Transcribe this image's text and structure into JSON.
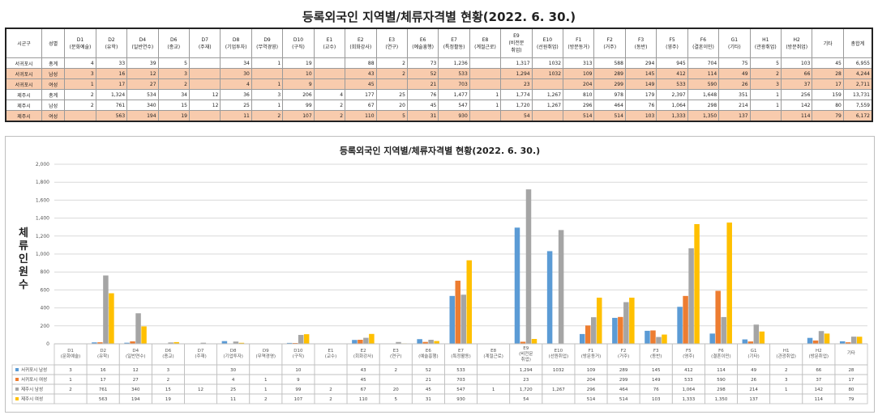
{
  "title": "등록외국인 지역별/체류자격별 현황(2022. 6. 30.)",
  "table": {
    "region_header": "시군구",
    "gender_header": "성별",
    "headers": [
      "D1\n(문화예술)",
      "D2\n(유학)",
      "D4\n(일반연수)",
      "D6\n(종교)",
      "D7\n(주재)",
      "D8\n(기업투자)",
      "D9\n(무역경영)",
      "D10\n(구직)",
      "E1\n(교수)",
      "E2\n(회화강사)",
      "E3\n(연구)",
      "E6\n(예술흥행)",
      "E7\n(특정활동)",
      "E8\n(계절근로)",
      "E9\n(비전문\n취업)",
      "E10\n(선원취업)",
      "F1\n(방문동거)",
      "F2\n(거주)",
      "F3\n(동반)",
      "F5\n(영주)",
      "F6\n(결혼이민)",
      "G1\n(기타)",
      "H1\n(관광취업)",
      "H2\n(방문취업)",
      "기타",
      "총합계"
    ],
    "rows": [
      {
        "region": "서귀포시",
        "gender": "총계",
        "values": [
          "4",
          "33",
          "39",
          "5",
          "",
          "34",
          "1",
          "19",
          "",
          "88",
          "2",
          "73",
          "1,236",
          "",
          "1,317",
          "1032",
          "313",
          "588",
          "294",
          "945",
          "704",
          "75",
          "5",
          "103",
          "45",
          "6,955"
        ]
      },
      {
        "region": "서귀포시",
        "gender": "남성",
        "values": [
          "3",
          "16",
          "12",
          "3",
          "",
          "30",
          "",
          "10",
          "",
          "43",
          "2",
          "52",
          "533",
          "",
          "1,294",
          "1032",
          "109",
          "289",
          "145",
          "412",
          "114",
          "49",
          "2",
          "66",
          "28",
          "4,244"
        ]
      },
      {
        "region": "서귀포시",
        "gender": "여성",
        "values": [
          "1",
          "17",
          "27",
          "2",
          "",
          "4",
          "1",
          "9",
          "",
          "45",
          "",
          "21",
          "703",
          "",
          "23",
          "",
          "204",
          "299",
          "149",
          "533",
          "590",
          "26",
          "3",
          "37",
          "17",
          "2,711"
        ]
      },
      {
        "region": "제주시",
        "gender": "총계",
        "values": [
          "2",
          "1,324",
          "534",
          "34",
          "12",
          "36",
          "3",
          "206",
          "4",
          "177",
          "25",
          "76",
          "1,477",
          "1",
          "1,774",
          "1,267",
          "810",
          "978",
          "179",
          "2,397",
          "1,648",
          "351",
          "1",
          "256",
          "159",
          "13,731"
        ]
      },
      {
        "region": "제주시",
        "gender": "남성",
        "values": [
          "2",
          "761",
          "340",
          "15",
          "12",
          "25",
          "1",
          "99",
          "2",
          "67",
          "20",
          "45",
          "547",
          "1",
          "1,720",
          "1,267",
          "296",
          "464",
          "76",
          "1,064",
          "298",
          "214",
          "1",
          "142",
          "80",
          "7,559"
        ]
      },
      {
        "region": "제주시",
        "gender": "여성",
        "values": [
          "",
          "563",
          "194",
          "19",
          "",
          "11",
          "2",
          "107",
          "2",
          "110",
          "5",
          "31",
          "930",
          "",
          "54",
          "",
          "514",
          "514",
          "103",
          "1,333",
          "1,350",
          "137",
          "",
          "114",
          "79",
          "6,172"
        ]
      }
    ]
  },
  "chart_data": {
    "type": "bar",
    "title": "등록외국인 지역별/체류자격별 현황(2022. 6. 30.)",
    "ylabel": "체류인원수",
    "xlabel": "",
    "ylim": [
      0,
      2000
    ],
    "yticks": [
      "0",
      "200",
      "400",
      "600",
      "800",
      "1,000",
      "1,200",
      "1,400",
      "1,600",
      "1,800",
      "2,000"
    ],
    "grid": true,
    "legend": "table-bottom",
    "categories": [
      "D1\n(문화예술)",
      "D2\n(유학)",
      "D4\n(일반연수)",
      "D6\n(종교)",
      "D7\n(주재)",
      "D8\n(기업투자)",
      "D9\n(무역경영)",
      "D10\n(구직)",
      "E1\n(교수)",
      "E2\n(회화강사)",
      "E3\n(연구)",
      "E6\n(예술흥행)",
      "E7\n(특정활동)",
      "E8\n(계절근로)",
      "E9\n(비전문\n취업)",
      "E10\n(선원취업)",
      "F1\n(방문동거)",
      "F2\n(거주)",
      "F3\n(동반)",
      "F5\n(영주)",
      "F6\n(결혼이민)",
      "G1\n(기타)",
      "H1\n(관광취업)",
      "H2\n(방문취업)",
      "기타"
    ],
    "series": [
      {
        "name": "서귀포시 남성",
        "color": "#5b9bd5",
        "values": [
          3,
          16,
          12,
          3,
          null,
          30,
          null,
          10,
          null,
          43,
          2,
          52,
          533,
          null,
          1294,
          1032,
          109,
          289,
          145,
          412,
          114,
          49,
          2,
          66,
          28
        ],
        "labels": [
          "3",
          "16",
          "12",
          "3",
          "",
          "30",
          "",
          "10",
          "",
          "43",
          "2",
          "52",
          "533",
          "",
          "1,294",
          "1032",
          "109",
          "289",
          "145",
          "412",
          "114",
          "49",
          "2",
          "66",
          "28"
        ]
      },
      {
        "name": "서귀포시 여성",
        "color": "#ed7d31",
        "values": [
          1,
          17,
          27,
          2,
          null,
          4,
          1,
          9,
          null,
          45,
          null,
          21,
          703,
          null,
          23,
          null,
          204,
          299,
          149,
          533,
          590,
          26,
          3,
          37,
          17
        ],
        "labels": [
          "1",
          "17",
          "27",
          "2",
          "",
          "4",
          "1",
          "9",
          "",
          "45",
          "",
          "21",
          "703",
          "",
          "23",
          "",
          "204",
          "299",
          "149",
          "533",
          "590",
          "26",
          "3",
          "37",
          "17"
        ]
      },
      {
        "name": "제주시 남성",
        "color": "#a5a5a5",
        "values": [
          2,
          761,
          340,
          15,
          12,
          25,
          1,
          99,
          2,
          67,
          20,
          45,
          547,
          1,
          1720,
          1267,
          296,
          464,
          76,
          1064,
          298,
          214,
          1,
          142,
          80
        ],
        "labels": [
          "2",
          "761",
          "340",
          "15",
          "12",
          "25",
          "1",
          "99",
          "2",
          "67",
          "20",
          "45",
          "547",
          "1",
          "1,720",
          "1,267",
          "296",
          "464",
          "76",
          "1,064",
          "298",
          "214",
          "1",
          "142",
          "80"
        ]
      },
      {
        "name": "제주시 여성",
        "color": "#ffc000",
        "values": [
          null,
          563,
          194,
          19,
          null,
          11,
          2,
          107,
          2,
          110,
          5,
          31,
          930,
          null,
          54,
          null,
          514,
          514,
          103,
          1333,
          1350,
          137,
          null,
          114,
          79
        ],
        "labels": [
          "",
          "563",
          "194",
          "19",
          "",
          "11",
          "2",
          "107",
          "2",
          "110",
          "5",
          "31",
          "930",
          "",
          "54",
          "",
          "514",
          "514",
          "103",
          "1,333",
          "1,350",
          "137",
          "",
          "114",
          "79"
        ]
      }
    ]
  }
}
